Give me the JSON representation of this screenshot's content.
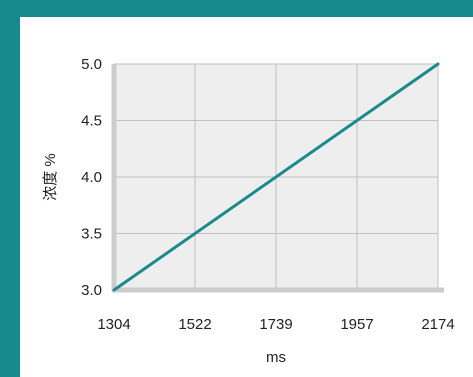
{
  "chart_data": {
    "type": "line",
    "title": "",
    "xlabel": "ms",
    "ylabel": "浓度 %",
    "x": [
      1304,
      2174
    ],
    "series": [
      {
        "values": [
          3.0,
          5.0
        ],
        "color": "#1b8a8c"
      }
    ],
    "xticks": [
      "1304",
      "1522",
      "1739",
      "1957",
      "2174"
    ],
    "yticks": [
      "3.0",
      "3.5",
      "4.0",
      "4.5",
      "5.0"
    ],
    "xlim": [
      1304,
      2174
    ],
    "ylim": [
      3.0,
      5.0
    ],
    "grid": true,
    "colors": {
      "frame": "#168a8c",
      "plot_bg": "#eeeeee",
      "grid": "#c0c0c0",
      "axis_edge": "#cccccc",
      "line": "#1b8a8c"
    }
  }
}
